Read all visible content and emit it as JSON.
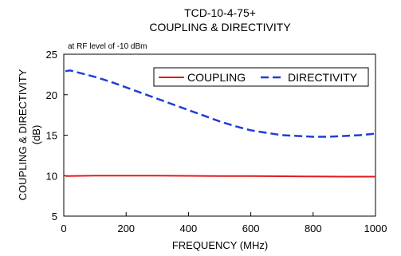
{
  "chart_data": {
    "type": "line",
    "title": "TCD-10-4-75+",
    "subtitle": "COUPLING & DIRECTIVITY",
    "annotation": "at RF level of -10 dBm",
    "xlabel": "FREQUENCY (MHz)",
    "ylabel": "COUPLING & DIRECTIVITY",
    "ylabel_unit": "(dB)",
    "xlim": [
      0,
      1000
    ],
    "ylim": [
      5,
      25
    ],
    "x_ticks": [
      0,
      200,
      400,
      600,
      800,
      1000
    ],
    "y_ticks": [
      5,
      10,
      15,
      20,
      25
    ],
    "grid": false,
    "legend_position": "top-right",
    "series": [
      {
        "name": "COUPLING",
        "color": "#e31a1c",
        "line_style": "solid",
        "x": [
          5,
          100,
          200,
          300,
          400,
          500,
          600,
          700,
          800,
          900,
          1000
        ],
        "y": [
          9.95,
          10.0,
          10.0,
          10.0,
          9.98,
          9.96,
          9.95,
          9.93,
          9.9,
          9.88,
          9.88
        ]
      },
      {
        "name": "DIRECTIVITY",
        "color": "#1f3ed6",
        "line_style": "dashed",
        "x": [
          5,
          20,
          50,
          100,
          150,
          200,
          250,
          300,
          350,
          400,
          450,
          500,
          550,
          600,
          650,
          700,
          750,
          800,
          850,
          900,
          950,
          1000
        ],
        "y": [
          22.9,
          23.0,
          22.7,
          22.2,
          21.6,
          20.9,
          20.2,
          19.5,
          18.8,
          18.1,
          17.4,
          16.7,
          16.1,
          15.6,
          15.3,
          15.0,
          14.9,
          14.8,
          14.8,
          14.9,
          15.0,
          15.2
        ]
      }
    ]
  }
}
